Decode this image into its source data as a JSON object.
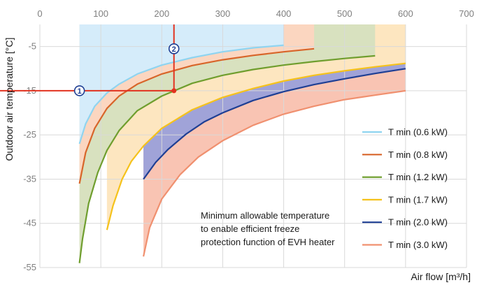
{
  "chart_data": {
    "type": "area",
    "xlabel": "Air flow [m³/h]",
    "ylabel": "Outdoor air temperature [°C]",
    "xlim": [
      0,
      700
    ],
    "ylim": [
      -55,
      0
    ],
    "x_ticks": [
      "0",
      "100",
      "200",
      "300",
      "400",
      "500",
      "600",
      "700"
    ],
    "y_ticks": [
      "-5",
      "-15",
      "-25",
      "-35",
      "-45",
      "-55"
    ],
    "x_tick_values": [
      0,
      100,
      200,
      300,
      400,
      500,
      600,
      700
    ],
    "y_tick_values": [
      -5,
      -15,
      -25,
      -35,
      -45,
      -55
    ],
    "grid": true,
    "legend_position": "right",
    "series": [
      {
        "name": "T min (0.6 kW)",
        "color": "#8fd4f0",
        "fill": "#d5ecfa",
        "x": [
          65,
          75,
          90,
          110,
          130,
          160,
          200,
          250,
          300,
          350,
          400
        ],
        "y": [
          -27,
          -22.5,
          -18.5,
          -15.5,
          -13.5,
          -11.2,
          -9.2,
          -7.5,
          -6.2,
          -5.3,
          -4.7
        ]
      },
      {
        "name": "T min (0.8 kW)",
        "color": "#d8652a",
        "fill": "#fbd6c0",
        "x": [
          65,
          75,
          90,
          110,
          130,
          160,
          200,
          250,
          300,
          350,
          400,
          450
        ],
        "y": [
          -36,
          -29,
          -23.5,
          -19,
          -16.2,
          -13.5,
          -11.2,
          -9.3,
          -8,
          -7,
          -6.2,
          -5.5
        ]
      },
      {
        "name": "T min (1.2 kW)",
        "color": "#6f9e2e",
        "fill": "#d8e1bf",
        "x": [
          65,
          70,
          80,
          95,
          110,
          130,
          160,
          200,
          250,
          300,
          350,
          400,
          450,
          500,
          550
        ],
        "y": [
          -54,
          -48.5,
          -40.5,
          -33.5,
          -28.5,
          -24,
          -19.5,
          -16.2,
          -13.3,
          -11.5,
          -10.2,
          -9.2,
          -8.4,
          -7.7,
          -7.1
        ]
      },
      {
        "name": "T min (1.7 kW)",
        "color": "#f5c21b",
        "fill": "#fde6c0",
        "x": [
          110,
          120,
          135,
          150,
          170,
          200,
          250,
          300,
          350,
          400,
          450,
          500,
          550,
          600
        ],
        "y": [
          -46.5,
          -41,
          -35,
          -31,
          -27.5,
          -23.5,
          -19.3,
          -16.5,
          -14.5,
          -12.8,
          -11.5,
          -10.5,
          -9.6,
          -8.8
        ]
      },
      {
        "name": "T min (2.0 kW)",
        "color": "#1f3f94",
        "fill": "#a0a3d8",
        "x": [
          170,
          190,
          210,
          240,
          270,
          300,
          350,
          400,
          450,
          500,
          550,
          600
        ],
        "y": [
          -35,
          -31.2,
          -28.3,
          -24.8,
          -22,
          -20,
          -17.2,
          -15.2,
          -13.6,
          -12.3,
          -11.1,
          -10
        ]
      },
      {
        "name": "T min (3.0 kW)",
        "color": "#f0906f",
        "fill": "#f9c4b3",
        "x": [
          170,
          180,
          200,
          230,
          260,
          300,
          350,
          400,
          450,
          500,
          550,
          600
        ],
        "y": [
          -52.5,
          -46,
          -39.5,
          -34,
          -30,
          -26.3,
          -22.8,
          -20.3,
          -18.5,
          -17,
          -16,
          -15
        ]
      }
    ],
    "annotation": {
      "lines": [
        "Minimum allowable temperature",
        "to enable efficient freeze",
        "protection function of EVH heater"
      ]
    },
    "example": {
      "airflow": 220,
      "temperature": -15,
      "markers": [
        "1",
        "2"
      ],
      "line_color": "#e2321f",
      "marker_color": "#1f3f94"
    }
  }
}
